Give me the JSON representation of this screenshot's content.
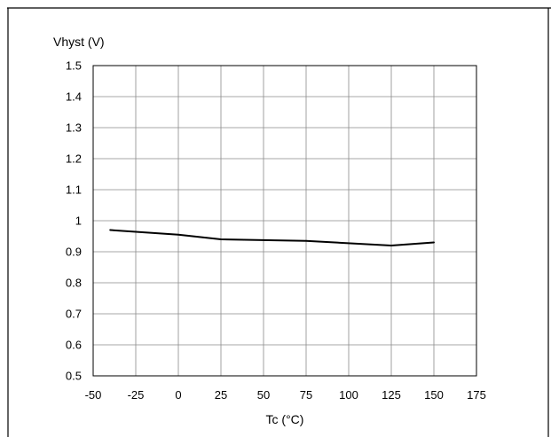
{
  "chart_data": {
    "type": "line",
    "title": "",
    "ylabel": "Vhyst (V)",
    "xlabel": "Tc (°C)",
    "xlim": [
      -50,
      175
    ],
    "ylim": [
      0.5,
      1.5
    ],
    "xticks": [
      "-50",
      "-25",
      "0",
      "25",
      "50",
      "75",
      "100",
      "125",
      "150",
      "175"
    ],
    "yticks": [
      "0.5",
      "0.6",
      "0.7",
      "0.8",
      "0.9",
      "1",
      "1.1",
      "1.2",
      "1.3",
      "1.4",
      "1.5"
    ],
    "grid": true,
    "series": [
      {
        "x": [
          -40,
          0,
          25,
          75,
          125,
          150
        ],
        "y": [
          0.97,
          0.955,
          0.94,
          0.935,
          0.92,
          0.93
        ]
      }
    ]
  }
}
